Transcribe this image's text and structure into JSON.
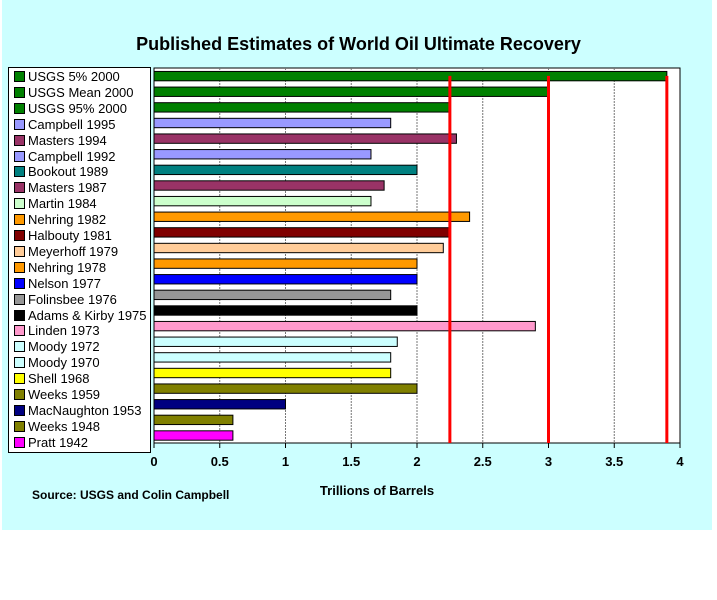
{
  "chart_data": {
    "type": "bar",
    "orientation": "horizontal",
    "title": "Published Estimates of World Oil Ultimate Recovery",
    "xlabel": "Trillions of Barrels",
    "source": "Source:  USGS and Colin Campbell",
    "xlim": [
      0,
      4
    ],
    "xticks": [
      "0",
      "0.5",
      "1",
      "1.5",
      "2",
      "2.5",
      "3",
      "3.5",
      "4"
    ],
    "reference_lines": [
      2.25,
      3.0,
      3.9
    ],
    "reference_color": "#ff0000",
    "categories": [
      "USGS 5% 2000",
      "USGS Mean 2000",
      "USGS 95% 2000",
      "Campbell 1995",
      "Masters 1994",
      "Campbell 1992",
      "Bookout 1989",
      "Masters 1987",
      "Martin 1984",
      "Nehring 1982",
      "Halbouty 1981",
      "Meyerhoff 1979",
      "Nehring 1978",
      "Nelson 1977",
      "Folinsbee 1976",
      "Adams & Kirby 1975",
      "Linden 1973",
      "Moody 1972",
      "Moody 1970",
      "Shell 1968",
      "Weeks 1959",
      "MacNaughton 1953",
      "Weeks 1948",
      "Pratt 1942"
    ],
    "values": [
      3.9,
      3.0,
      2.25,
      1.8,
      2.3,
      1.65,
      2.0,
      1.75,
      1.65,
      2.4,
      2.25,
      2.2,
      2.0,
      2.0,
      1.8,
      2.0,
      2.9,
      1.85,
      1.8,
      1.8,
      2.0,
      1.0,
      0.6,
      0.6
    ],
    "colors": [
      "#008000",
      "#008000",
      "#008000",
      "#9999ff",
      "#993366",
      "#9999ff",
      "#008080",
      "#993366",
      "#ccffcc",
      "#ff9900",
      "#800000",
      "#ffcc99",
      "#ff9900",
      "#0000ff",
      "#969696",
      "#000000",
      "#ff99cc",
      "#ccffff",
      "#ccffff",
      "#ffff00",
      "#808000",
      "#000080",
      "#808000",
      "#ff00ff"
    ]
  }
}
